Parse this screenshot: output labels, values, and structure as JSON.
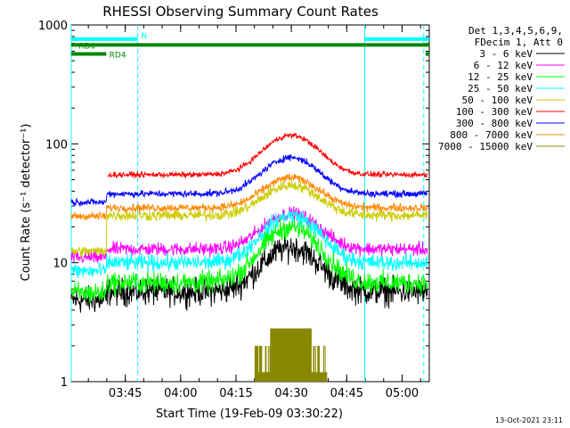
{
  "chart_data": {
    "type": "line",
    "title": "RHESSI Observing Summary Count Rates",
    "xlabel": "Start Time (19-Feb-09 03:30:22)",
    "ylabel": "Count Rate (s⁻¹ detector⁻¹)",
    "yscale": "log",
    "ylim": [
      1,
      1000
    ],
    "xlim_minutes_after_start": [
      0,
      97
    ],
    "x_ticks": [
      "03:45",
      "04:00",
      "04:15",
      "04:30",
      "04:45",
      "05:00"
    ],
    "y_ticks": [
      "1",
      "10",
      "100",
      "1000"
    ],
    "grid": false,
    "legend_placement": "top-right outside",
    "legend_header": [
      "Det 1,3,4,5,6,9,",
      "FDecim 1, Att 0"
    ],
    "flags": [
      {
        "name": "N",
        "color": "#00ffff",
        "y_value": 760,
        "segments": [
          [
            0,
            18
          ],
          [
            79.5,
            97
          ]
        ]
      },
      {
        "name": "RD0",
        "color": "#008800",
        "y_value": 680,
        "segments": [
          [
            0,
            97
          ]
        ]
      },
      {
        "name": "RD4",
        "color": "#008800",
        "y_value": 570,
        "segments": [
          [
            0,
            9.5
          ],
          [
            96,
            97
          ]
        ]
      }
    ],
    "vertical_lines": [
      {
        "x": 0,
        "color": "#00ffff",
        "style": "solid"
      },
      {
        "x": 18,
        "color": "#00ffff",
        "style": "dashed"
      },
      {
        "x": 79.5,
        "color": "#00ffff",
        "style": "solid"
      },
      {
        "x": 95.5,
        "color": "#00ffff",
        "style": "dashed"
      }
    ],
    "series": [
      {
        "name": "3 - 6 keV",
        "color": "#000000",
        "base": 5.7,
        "peak": 13.5,
        "noise": 0.1,
        "start": 0
      },
      {
        "name": "6 - 12 keV",
        "color": "#ff00ff",
        "base": 13,
        "peak": 26,
        "noise": 0.05,
        "start": 0
      },
      {
        "name": "12 - 25 keV",
        "color": "#00ff00",
        "base": 6.8,
        "peak": 20,
        "noise": 0.08,
        "start": 0
      },
      {
        "name": "25 - 50 keV",
        "color": "#00ffff",
        "base": 10,
        "peak": 25,
        "noise": 0.06,
        "start": 0
      },
      {
        "name": "50 - 100 keV",
        "color": "#cccc00",
        "base": 25,
        "peak": 45,
        "noise": 0.04,
        "start": 0
      },
      {
        "name": "100 - 300 keV",
        "color": "#ff0000",
        "base": 55,
        "peak": 118,
        "noise": 0.02,
        "start": 10
      },
      {
        "name": "300 - 800 keV",
        "color": "#0000ff",
        "base": 38,
        "peak": 77,
        "noise": 0.025,
        "start": 0
      },
      {
        "name": "800 - 7000 keV",
        "color": "#ff8800",
        "base": 29,
        "peak": 52,
        "noise": 0.03,
        "start": 0
      },
      {
        "name": "7000 - 15000 keV",
        "color": "#888800",
        "base": 0,
        "peak": 2.8,
        "noise": 0,
        "start": 0
      }
    ]
  },
  "footer": {
    "timestamp": "13-Oct-2021 23:11"
  }
}
